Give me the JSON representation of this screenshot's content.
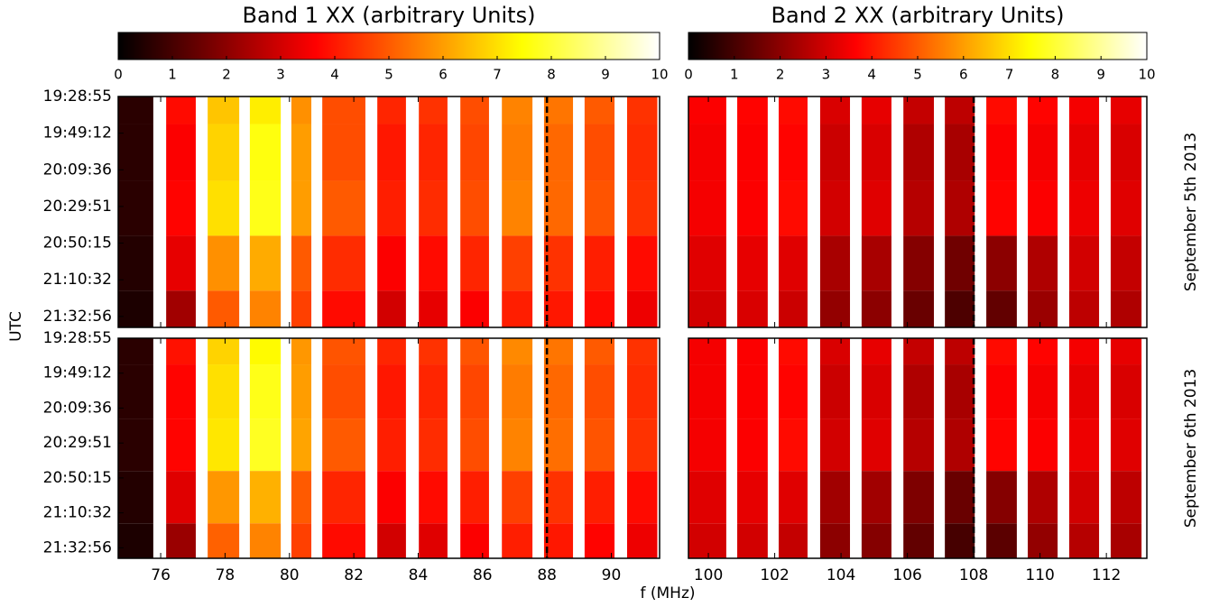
{
  "ylabel": "UTC",
  "xlabel": "f (MHz)",
  "row_labels": [
    "September 5th 2013",
    "September 6th 2013"
  ],
  "ylim": [
    0,
    6.3
  ],
  "yticks": [
    {
      "value": 0,
      "label": "19:28:55"
    },
    {
      "value": 1,
      "label": "19:49:12"
    },
    {
      "value": 2,
      "label": "20:09:36"
    },
    {
      "value": 3,
      "label": "20:29:51"
    },
    {
      "value": 4,
      "label": "20:50:15"
    },
    {
      "value": 5,
      "label": "21:10:32"
    },
    {
      "value": 6,
      "label": "21:32:56"
    }
  ],
  "time_edges": [
    0,
    0.75,
    2.3,
    3.8,
    5.3,
    6.3
  ],
  "chart_data": [
    {
      "type": "heatmap",
      "title": "Band 1 XX (arbitrary Units)",
      "colormap": "hot",
      "zlim": [
        0,
        10
      ],
      "colorbar_ticks": [
        0,
        1,
        2,
        3,
        4,
        5,
        6,
        7,
        8,
        9,
        10
      ],
      "xlim": [
        74.68,
        91.5
      ],
      "xticks": [
        76,
        78,
        80,
        82,
        84,
        86,
        88,
        90
      ],
      "vline": 88,
      "x_edges": [
        [
          74.68,
          75.77
        ],
        [
          76.17,
          77.09
        ],
        [
          77.46,
          78.44
        ],
        [
          78.77,
          79.73
        ],
        [
          80.06,
          80.68
        ],
        [
          81.02,
          82.36
        ],
        [
          82.73,
          83.62
        ],
        [
          84.02,
          84.91
        ],
        [
          85.31,
          86.2
        ],
        [
          86.6,
          87.55
        ],
        [
          87.91,
          88.81
        ],
        [
          89.17,
          90.1
        ],
        [
          90.49,
          91.43
        ]
      ],
      "values": [
        [
          [
            0.6,
            3.8,
            6.6,
            7.2,
            5.8,
            4.8,
            4.2,
            4.4,
            4.8,
            5.6,
            5.4,
            5.0,
            4.4
          ],
          [
            0.6,
            3.6,
            6.8,
            7.6,
            6.0,
            4.8,
            4.0,
            4.2,
            4.7,
            5.5,
            5.2,
            4.8,
            4.3
          ],
          [
            0.6,
            3.7,
            7.0,
            7.7,
            6.0,
            5.0,
            4.1,
            4.3,
            4.8,
            5.6,
            5.2,
            4.9,
            4.4
          ],
          [
            0.5,
            3.3,
            5.8,
            6.2,
            5.0,
            4.3,
            3.6,
            3.8,
            4.2,
            4.6,
            4.4,
            4.1,
            3.8
          ],
          [
            0.4,
            2.3,
            5.0,
            5.6,
            4.6,
            3.8,
            3.0,
            3.3,
            3.6,
            4.1,
            4.0,
            3.8,
            3.4
          ]
        ],
        [
          [
            0.6,
            3.9,
            6.8,
            7.4,
            5.9,
            4.9,
            4.2,
            4.4,
            4.9,
            5.7,
            5.4,
            5.0,
            4.4
          ],
          [
            0.6,
            3.7,
            7.0,
            7.7,
            6.0,
            4.8,
            4.0,
            4.2,
            4.7,
            5.5,
            5.2,
            4.8,
            4.3
          ],
          [
            0.6,
            3.7,
            7.1,
            7.8,
            6.1,
            5.0,
            4.1,
            4.3,
            4.8,
            5.6,
            5.3,
            4.9,
            4.4
          ],
          [
            0.5,
            3.2,
            5.9,
            6.3,
            5.0,
            4.2,
            3.6,
            3.8,
            4.1,
            4.6,
            4.4,
            4.1,
            3.8
          ],
          [
            0.4,
            2.2,
            5.1,
            5.6,
            4.6,
            3.8,
            3.0,
            3.2,
            3.6,
            4.1,
            4.0,
            3.7,
            3.4
          ]
        ]
      ]
    },
    {
      "type": "heatmap",
      "title": "Band 2 XX (arbitrary Units)",
      "colormap": "hot",
      "zlim": [
        0,
        10
      ],
      "colorbar_ticks": [
        0,
        1,
        2,
        3,
        4,
        5,
        6,
        7,
        8,
        9,
        10
      ],
      "xlim": [
        99.4,
        113.22
      ],
      "xticks": [
        100,
        102,
        104,
        106,
        108,
        110,
        112
      ],
      "vline": 108,
      "x_edges": [
        [
          99.4,
          100.54
        ],
        [
          100.87,
          101.79
        ],
        [
          102.12,
          102.99
        ],
        [
          103.37,
          104.27
        ],
        [
          104.62,
          105.52
        ],
        [
          105.88,
          106.8
        ],
        [
          107.13,
          108.03
        ],
        [
          108.38,
          109.3
        ],
        [
          109.63,
          110.53
        ],
        [
          110.88,
          111.78
        ],
        [
          112.13,
          113.06
        ]
      ],
      "values": [
        [
          [
            3.6,
            3.7,
            3.8,
            3.1,
            3.3,
            2.8,
            2.7,
            3.8,
            3.7,
            3.5,
            3.3
          ],
          [
            3.5,
            3.6,
            3.7,
            2.9,
            3.1,
            2.5,
            2.4,
            3.6,
            3.5,
            3.3,
            3.1
          ],
          [
            3.5,
            3.6,
            3.8,
            3.0,
            3.2,
            2.6,
            2.5,
            3.7,
            3.6,
            3.4,
            3.2
          ],
          [
            3.2,
            3.3,
            3.2,
            2.4,
            2.4,
            1.9,
            1.6,
            2.0,
            2.5,
            3.0,
            2.8
          ],
          [
            3.0,
            3.1,
            2.9,
            2.1,
            2.0,
            1.5,
            1.1,
            1.4,
            2.2,
            2.7,
            2.5
          ]
        ],
        [
          [
            3.5,
            3.6,
            3.8,
            3.1,
            3.3,
            2.8,
            2.7,
            3.8,
            3.7,
            3.5,
            3.3
          ],
          [
            3.5,
            3.6,
            3.7,
            2.9,
            3.1,
            2.5,
            2.4,
            3.6,
            3.5,
            3.3,
            3.1
          ],
          [
            3.5,
            3.6,
            3.8,
            3.0,
            3.2,
            2.6,
            2.5,
            3.7,
            3.6,
            3.4,
            3.2
          ],
          [
            3.2,
            3.3,
            3.2,
            2.3,
            2.3,
            1.8,
            1.5,
            1.9,
            2.5,
            3.0,
            2.7
          ],
          [
            3.0,
            3.0,
            2.8,
            2.0,
            1.9,
            1.4,
            1.0,
            1.3,
            2.1,
            2.6,
            2.4
          ]
        ]
      ]
    }
  ]
}
